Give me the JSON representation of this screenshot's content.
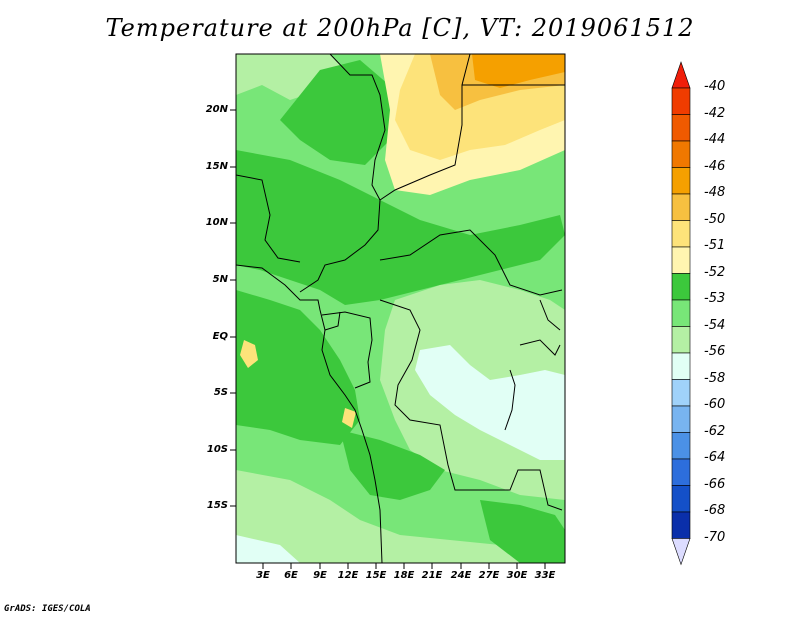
{
  "title": "Temperature at 200hPa [C], VT: 2019061512",
  "credit": "GrADS: IGES/COLA",
  "lat_labels": [
    "20N",
    "15N",
    "10N",
    "5N",
    "EQ",
    "5S",
    "10S",
    "15S"
  ],
  "lon_labels": [
    "3E",
    "6E",
    "9E",
    "12E",
    "15E",
    "18E",
    "21E",
    "24E",
    "27E",
    "30E",
    "33E"
  ],
  "colorbar": {
    "labels": [
      "-40",
      "-42",
      "-44",
      "-46",
      "-48",
      "-50",
      "-51",
      "-52",
      "-53",
      "-54",
      "-56",
      "-58",
      "-60",
      "-62",
      "-64",
      "-66",
      "-68",
      "-70"
    ],
    "colors": [
      "#f03c00",
      "#f05a00",
      "#f07800",
      "#f5a000",
      "#f7c040",
      "#fde37a",
      "#fff5b0",
      "#3cc83c",
      "#78e678",
      "#b4f0a4",
      "#e1fff5",
      "#a0d2fa",
      "#78b4f0",
      "#4b91e6",
      "#2d6edc",
      "#1450c8",
      "#0a2faa",
      "#141464"
    ],
    "top_color": "#f01e0a",
    "bottom_color": "#dcdcff"
  },
  "legend_level_colors": {
    "orange": "#f5a000",
    "light_orange": "#f7c040",
    "yellow": "#fde37a",
    "pale_yellow": "#fff5b0",
    "green": "#3cc83c",
    "mid_green": "#78e678",
    "light_green": "#b4f0a4",
    "pale_cyan": "#e1fff5"
  }
}
